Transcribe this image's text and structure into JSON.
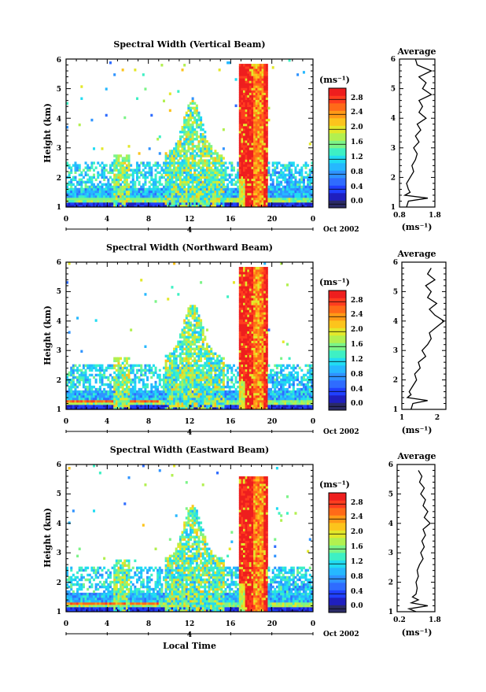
{
  "chart_data": [
    {
      "type": "heatmap",
      "title": "Spectral Width (Vertical Beam)",
      "ylabel": "Height (km)",
      "xlabel": "",
      "xlim": [
        0,
        24
      ],
      "ylim": [
        1,
        6
      ],
      "x_ticks": [
        "0",
        "4",
        "8",
        "12",
        "16",
        "20",
        "0"
      ],
      "y_ticks": [
        "1",
        "2",
        "3",
        "4",
        "5",
        "6"
      ],
      "day_label": "4",
      "date_label": "Oct 2002",
      "colorbar": {
        "unit": "(ms⁻¹)",
        "ticks": [
          "0.0",
          "0.4",
          "0.8",
          "1.2",
          "1.6",
          "2.0",
          "2.4",
          "2.8"
        ]
      },
      "profile": {
        "title": "Average",
        "xlabel": "(ms⁻¹)",
        "xlim": [
          0.8,
          1.8
        ],
        "x_ticks": [
          "0.8",
          "1.8"
        ],
        "y_ticks": [
          "1",
          "2",
          "3",
          "4",
          "5",
          "6"
        ],
        "heights": [
          1.0,
          1.2,
          1.3,
          1.4,
          1.5,
          1.6,
          1.8,
          2.0,
          2.2,
          2.4,
          2.6,
          2.8,
          3.0,
          3.2,
          3.4,
          3.6,
          3.8,
          4.0,
          4.2,
          4.4,
          4.6,
          4.8,
          5.0,
          5.2,
          5.4,
          5.6,
          5.8,
          6.0
        ],
        "values": [
          1.0,
          1.05,
          1.6,
          0.95,
          1.1,
          1.05,
          1.0,
          1.1,
          1.2,
          1.15,
          1.25,
          1.3,
          1.2,
          1.35,
          1.25,
          1.4,
          1.3,
          1.55,
          1.35,
          1.45,
          1.35,
          1.7,
          1.45,
          1.55,
          1.35,
          1.7,
          1.3,
          1.25
        ]
      }
    },
    {
      "type": "heatmap",
      "title": "Spectral Width (Northward Beam)",
      "ylabel": "Height (km)",
      "xlabel": "",
      "xlim": [
        0,
        24
      ],
      "ylim": [
        1,
        6
      ],
      "x_ticks": [
        "0",
        "4",
        "8",
        "12",
        "16",
        "20",
        "0"
      ],
      "y_ticks": [
        "1",
        "2",
        "3",
        "4",
        "5",
        "6"
      ],
      "day_label": "4",
      "date_label": "Oct 2002",
      "colorbar": {
        "unit": "(ms⁻¹)",
        "ticks": [
          "0.0",
          "0.4",
          "0.8",
          "1.2",
          "1.6",
          "2.0",
          "2.4",
          "2.8"
        ]
      },
      "profile": {
        "title": "Average",
        "xlabel": "(ms⁻¹)",
        "xlim": [
          0.8,
          2.0
        ],
        "x_ticks": [
          "1",
          "2"
        ],
        "y_ticks": [
          "1",
          "2",
          "3",
          "4",
          "5",
          "6"
        ],
        "heights": [
          1.0,
          1.2,
          1.3,
          1.4,
          1.5,
          1.6,
          1.8,
          2.0,
          2.2,
          2.4,
          2.6,
          2.8,
          3.0,
          3.2,
          3.4,
          3.6,
          3.8,
          4.0,
          4.2,
          4.4,
          4.6,
          4.8,
          5.0,
          5.2,
          5.4,
          5.6,
          5.8
        ],
        "values": [
          1.05,
          1.1,
          1.5,
          0.95,
          1.05,
          1.0,
          1.1,
          1.2,
          1.15,
          1.3,
          1.25,
          1.45,
          1.35,
          1.5,
          1.6,
          1.55,
          1.75,
          1.95,
          1.7,
          1.55,
          1.75,
          1.5,
          1.6,
          1.45,
          1.7,
          1.5,
          1.6
        ]
      }
    },
    {
      "type": "heatmap",
      "title": "Spectral Width (Eastward Beam)",
      "ylabel": "Height (km)",
      "xlabel": "Local Time",
      "xlim": [
        0,
        24
      ],
      "ylim": [
        1,
        6
      ],
      "x_ticks": [
        "0",
        "4",
        "8",
        "12",
        "16",
        "20",
        "0"
      ],
      "y_ticks": [
        "1",
        "2",
        "3",
        "4",
        "5",
        "6"
      ],
      "day_label": "4",
      "date_label": "Oct 2002",
      "colorbar": {
        "unit": "(ms⁻¹)",
        "ticks": [
          "0.0",
          "0.4",
          "0.8",
          "1.2",
          "1.6",
          "2.0",
          "2.4",
          "2.8"
        ]
      },
      "profile": {
        "title": "Average",
        "xlabel": "(ms⁻¹)",
        "xlim": [
          0.2,
          1.8
        ],
        "x_ticks": [
          "0.2",
          "1.8"
        ],
        "y_ticks": [
          "1",
          "2",
          "3",
          "4",
          "5",
          "6"
        ],
        "heights": [
          1.0,
          1.1,
          1.2,
          1.3,
          1.4,
          1.5,
          1.6,
          1.8,
          2.0,
          2.2,
          2.4,
          2.6,
          2.8,
          3.0,
          3.2,
          3.4,
          3.6,
          3.8,
          4.0,
          4.2,
          4.4,
          4.6,
          4.8,
          5.0,
          5.2,
          5.4,
          5.6,
          5.8
        ],
        "values": [
          1.0,
          0.7,
          1.5,
          0.8,
          1.1,
          0.85,
          1.0,
          1.05,
          1.0,
          1.1,
          1.05,
          1.15,
          1.3,
          1.2,
          1.35,
          1.25,
          1.4,
          1.3,
          1.6,
          1.35,
          1.5,
          1.3,
          1.4,
          1.2,
          1.35,
          1.15,
          1.25,
          1.1
        ]
      }
    }
  ]
}
